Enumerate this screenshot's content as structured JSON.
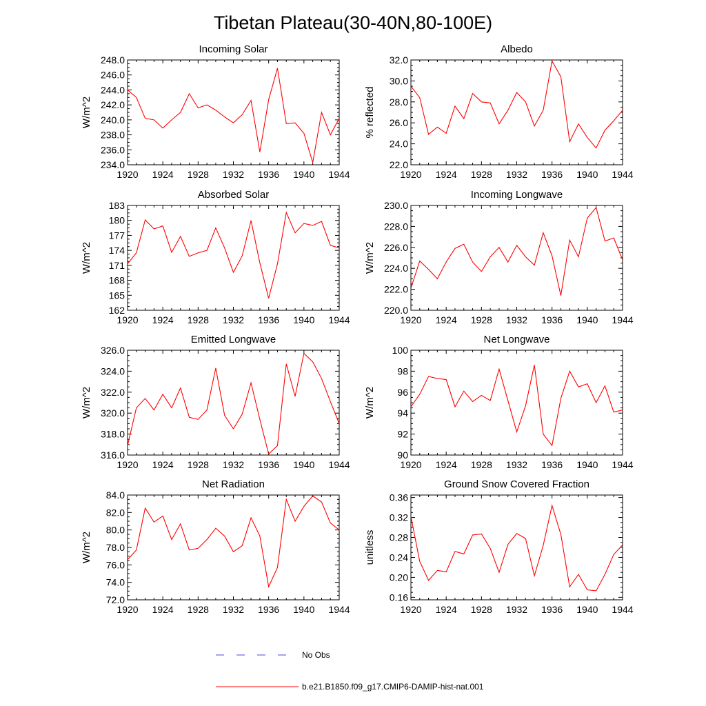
{
  "figure": {
    "title": "Tibetan Plateau(30-40N,80-100E)"
  },
  "legend": {
    "obs_label": "No Obs",
    "obs_color": "#4a4adf",
    "model_label": "b.e21.B1850.f09_g17.CMIP6-DAMIP-hist-nat.001",
    "model_color": "#ff0000"
  },
  "chart_data": [
    {
      "type": "line",
      "title": "Incoming Solar",
      "ylabel": "W/m^2",
      "xlim": [
        1920,
        1944
      ],
      "ylim": [
        234,
        248
      ],
      "yticks": [
        "234.0",
        "236.0",
        "238.0",
        "240.0",
        "242.0",
        "244.0",
        "246.0",
        "248.0"
      ],
      "xticks": [
        "1920",
        "1924",
        "1928",
        "1932",
        "1936",
        "1940",
        "1944"
      ],
      "series": [
        {
          "color": "#ff0000",
          "x": [
            1920,
            1921,
            1922,
            1923,
            1924,
            1925,
            1926,
            1927,
            1928,
            1929,
            1930,
            1931,
            1932,
            1933,
            1934,
            1935,
            1936,
            1937,
            1938,
            1939,
            1940,
            1941,
            1942,
            1943,
            1944
          ],
          "values": [
            244.0,
            243.0,
            240.2,
            240.0,
            238.9,
            240.0,
            241.0,
            243.5,
            241.6,
            242.0,
            241.3,
            240.4,
            239.6,
            240.7,
            242.6,
            235.7,
            242.7,
            246.9,
            239.5,
            239.6,
            238.2,
            234.3,
            241.0,
            238.0,
            240.2
          ]
        }
      ]
    },
    {
      "type": "line",
      "title": "Albedo",
      "ylabel": "% reflected",
      "xlim": [
        1920,
        1944
      ],
      "ylim": [
        22,
        32
      ],
      "yticks": [
        "22.0",
        "24.0",
        "26.0",
        "28.0",
        "30.0",
        "32.0"
      ],
      "xticks": [
        "1920",
        "1924",
        "1928",
        "1932",
        "1936",
        "1940",
        "1944"
      ],
      "series": [
        {
          "color": "#ff0000",
          "x": [
            1920,
            1921,
            1922,
            1923,
            1924,
            1925,
            1926,
            1927,
            1928,
            1929,
            1930,
            1931,
            1932,
            1933,
            1934,
            1935,
            1936,
            1937,
            1938,
            1939,
            1940,
            1941,
            1942,
            1943,
            1944
          ],
          "values": [
            29.5,
            28.4,
            24.9,
            25.6,
            25.0,
            27.6,
            26.4,
            28.8,
            28.0,
            27.9,
            25.9,
            27.2,
            28.9,
            28.0,
            25.7,
            27.2,
            31.9,
            30.4,
            24.2,
            25.9,
            24.6,
            23.6,
            25.3,
            26.2,
            27.2
          ]
        }
      ]
    },
    {
      "type": "line",
      "title": "Absorbed Solar",
      "ylabel": "W/m^2",
      "xlim": [
        1920,
        1944
      ],
      "ylim": [
        162,
        183
      ],
      "yticks": [
        "162",
        "165",
        "168",
        "171",
        "174",
        "177",
        "180",
        "183"
      ],
      "xticks": [
        "1920",
        "1924",
        "1928",
        "1932",
        "1936",
        "1940",
        "1944"
      ],
      "series": [
        {
          "color": "#ff0000",
          "x": [
            1920,
            1921,
            1922,
            1923,
            1924,
            1925,
            1926,
            1927,
            1928,
            1929,
            1930,
            1931,
            1932,
            1933,
            1934,
            1935,
            1936,
            1937,
            1938,
            1939,
            1940,
            1941,
            1942,
            1943,
            1944
          ],
          "values": [
            171.3,
            173.5,
            180.1,
            178.3,
            178.9,
            173.6,
            176.8,
            172.8,
            173.5,
            174.0,
            178.5,
            174.5,
            169.6,
            172.9,
            180.0,
            171.5,
            164.4,
            171.3,
            181.6,
            177.5,
            179.4,
            179.0,
            179.8,
            175.0,
            174.5
          ]
        }
      ]
    },
    {
      "type": "line",
      "title": "Incoming Longwave",
      "ylabel": "W/m^2",
      "xlim": [
        1920,
        1944
      ],
      "ylim": [
        220,
        230
      ],
      "yticks": [
        "220.0",
        "222.0",
        "224.0",
        "226.0",
        "228.0",
        "230.0"
      ],
      "xticks": [
        "1920",
        "1924",
        "1928",
        "1932",
        "1936",
        "1940",
        "1944"
      ],
      "series": [
        {
          "color": "#ff0000",
          "x": [
            1920,
            1921,
            1922,
            1923,
            1924,
            1925,
            1926,
            1927,
            1928,
            1929,
            1930,
            1931,
            1932,
            1933,
            1934,
            1935,
            1936,
            1937,
            1938,
            1939,
            1940,
            1941,
            1942,
            1943,
            1944
          ],
          "values": [
            222.1,
            224.7,
            223.9,
            223.0,
            224.6,
            225.9,
            226.3,
            224.6,
            223.7,
            225.1,
            226.0,
            224.6,
            226.2,
            225.1,
            224.3,
            227.4,
            225.2,
            221.4,
            226.7,
            225.1,
            228.8,
            229.8,
            226.6,
            226.9,
            224.8
          ]
        }
      ]
    },
    {
      "type": "line",
      "title": "Emitted Longwave",
      "ylabel": "W/m^2",
      "xlim": [
        1920,
        1944
      ],
      "ylim": [
        316,
        326
      ],
      "yticks": [
        "316.0",
        "318.0",
        "320.0",
        "322.0",
        "324.0",
        "326.0"
      ],
      "xticks": [
        "1920",
        "1924",
        "1928",
        "1932",
        "1936",
        "1940",
        "1944"
      ],
      "series": [
        {
          "color": "#ff0000",
          "x": [
            1920,
            1921,
            1922,
            1923,
            1924,
            1925,
            1926,
            1927,
            1928,
            1929,
            1930,
            1931,
            1932,
            1933,
            1934,
            1935,
            1936,
            1937,
            1938,
            1939,
            1940,
            1941,
            1942,
            1943,
            1944
          ],
          "values": [
            316.9,
            320.5,
            321.4,
            320.3,
            321.8,
            320.5,
            322.4,
            319.6,
            319.4,
            320.3,
            324.3,
            319.8,
            318.5,
            319.9,
            322.9,
            319.4,
            316.1,
            316.9,
            324.7,
            321.6,
            325.7,
            324.9,
            323.3,
            321.1,
            319.0
          ]
        }
      ]
    },
    {
      "type": "line",
      "title": "Net Longwave",
      "ylabel": "W/m^2",
      "xlim": [
        1920,
        1944
      ],
      "ylim": [
        90,
        100
      ],
      "yticks": [
        "90",
        "92",
        "94",
        "96",
        "98",
        "100"
      ],
      "xticks": [
        "1920",
        "1924",
        "1928",
        "1932",
        "1936",
        "1940",
        "1944"
      ],
      "series": [
        {
          "color": "#ff0000",
          "x": [
            1920,
            1921,
            1922,
            1923,
            1924,
            1925,
            1926,
            1927,
            1928,
            1929,
            1930,
            1931,
            1932,
            1933,
            1934,
            1935,
            1936,
            1937,
            1938,
            1939,
            1940,
            1941,
            1942,
            1943,
            1944
          ],
          "values": [
            94.6,
            95.8,
            97.5,
            97.3,
            97.2,
            94.6,
            96.1,
            95.1,
            95.7,
            95.2,
            98.2,
            95.2,
            92.2,
            94.7,
            98.6,
            92.0,
            90.9,
            95.4,
            98.0,
            96.5,
            96.8,
            95.0,
            96.6,
            94.1,
            94.3
          ]
        }
      ]
    },
    {
      "type": "line",
      "title": "Net Radiation",
      "ylabel": "W/m^2",
      "xlim": [
        1920,
        1944
      ],
      "ylim": [
        72,
        84
      ],
      "yticks": [
        "72.0",
        "74.0",
        "76.0",
        "78.0",
        "80.0",
        "82.0",
        "84.0"
      ],
      "xticks": [
        "1920",
        "1924",
        "1928",
        "1932",
        "1936",
        "1940",
        "1944"
      ],
      "series": [
        {
          "color": "#ff0000",
          "x": [
            1920,
            1921,
            1922,
            1923,
            1924,
            1925,
            1926,
            1927,
            1928,
            1929,
            1930,
            1931,
            1932,
            1933,
            1934,
            1935,
            1936,
            1937,
            1938,
            1939,
            1940,
            1941,
            1942,
            1943,
            1944
          ],
          "values": [
            76.6,
            77.7,
            82.5,
            80.9,
            81.6,
            78.9,
            80.7,
            77.7,
            77.9,
            78.9,
            80.2,
            79.3,
            77.5,
            78.2,
            81.4,
            79.3,
            73.5,
            75.7,
            83.5,
            81.0,
            82.7,
            83.9,
            83.2,
            80.8,
            80.0
          ]
        }
      ]
    },
    {
      "type": "line",
      "title": "Ground Snow Covered Fraction",
      "ylabel": "unitless",
      "xlim": [
        1920,
        1944
      ],
      "ylim": [
        0.155,
        0.365
      ],
      "yticks": [
        "0.16",
        "0.20",
        "0.24",
        "0.28",
        "0.32",
        "0.36"
      ],
      "xticks": [
        "1920",
        "1924",
        "1928",
        "1932",
        "1936",
        "1940",
        "1944"
      ],
      "series": [
        {
          "color": "#ff0000",
          "x": [
            1920,
            1921,
            1922,
            1923,
            1924,
            1925,
            1926,
            1927,
            1928,
            1929,
            1930,
            1931,
            1932,
            1933,
            1934,
            1935,
            1936,
            1937,
            1938,
            1939,
            1940,
            1941,
            1942,
            1943,
            1944
          ],
          "values": [
            0.322,
            0.232,
            0.194,
            0.214,
            0.211,
            0.252,
            0.247,
            0.285,
            0.287,
            0.258,
            0.21,
            0.266,
            0.288,
            0.278,
            0.203,
            0.264,
            0.344,
            0.286,
            0.181,
            0.206,
            0.175,
            0.173,
            0.206,
            0.246,
            0.265
          ]
        }
      ]
    }
  ]
}
